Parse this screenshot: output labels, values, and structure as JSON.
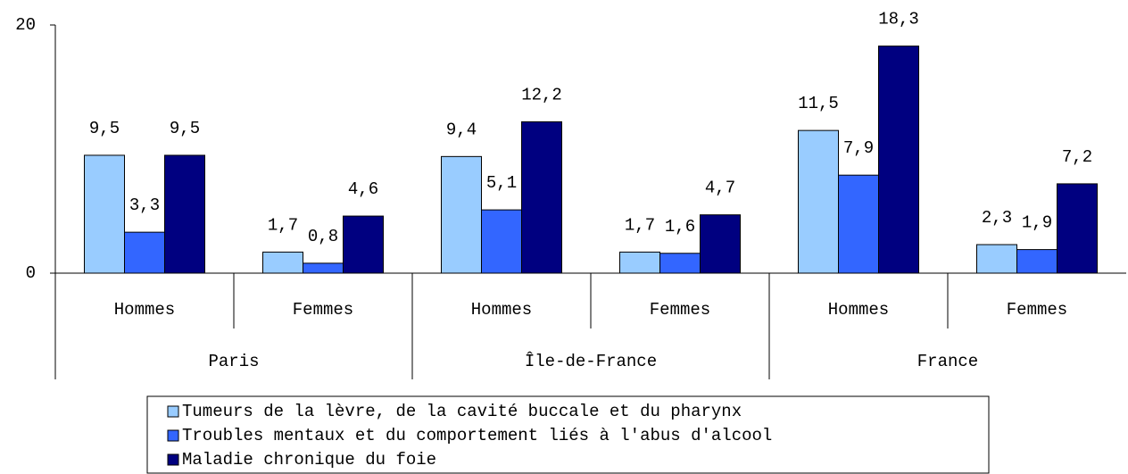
{
  "chart_data": {
    "type": "bar",
    "categories": [
      "Hommes",
      "Femmes",
      "Hommes",
      "Femmes",
      "Hommes",
      "Femmes"
    ],
    "groups": [
      "Paris",
      "Île-de-France",
      "France"
    ],
    "series": [
      {
        "name": "Tumeurs de la lèvre, de la cavité buccale et du pharynx",
        "color": "#99ccff",
        "values": [
          9.5,
          1.7,
          9.4,
          1.7,
          11.5,
          2.3
        ],
        "value_labels": [
          "9,5",
          "1,7",
          "9,4",
          "1,7",
          "11,5",
          "2,3"
        ]
      },
      {
        "name": "Troubles mentaux et du comportement liés à l'abus d'alcool",
        "color": "#3366ff",
        "values": [
          3.3,
          0.8,
          5.1,
          1.6,
          7.9,
          1.9
        ],
        "value_labels": [
          "3,3",
          "0,8",
          "5,1",
          "1,6",
          "7,9",
          "1,9"
        ]
      },
      {
        "name": "Maladie chronique du foie",
        "color": "#000080",
        "values": [
          9.5,
          4.6,
          12.2,
          4.7,
          18.3,
          7.2
        ],
        "value_labels": [
          "9,5",
          "4,6",
          "12,2",
          "4,7",
          "18,3",
          "7,2"
        ]
      }
    ],
    "ylim": [
      0,
      20
    ],
    "yticks": [
      0,
      20
    ],
    "grid": false
  }
}
